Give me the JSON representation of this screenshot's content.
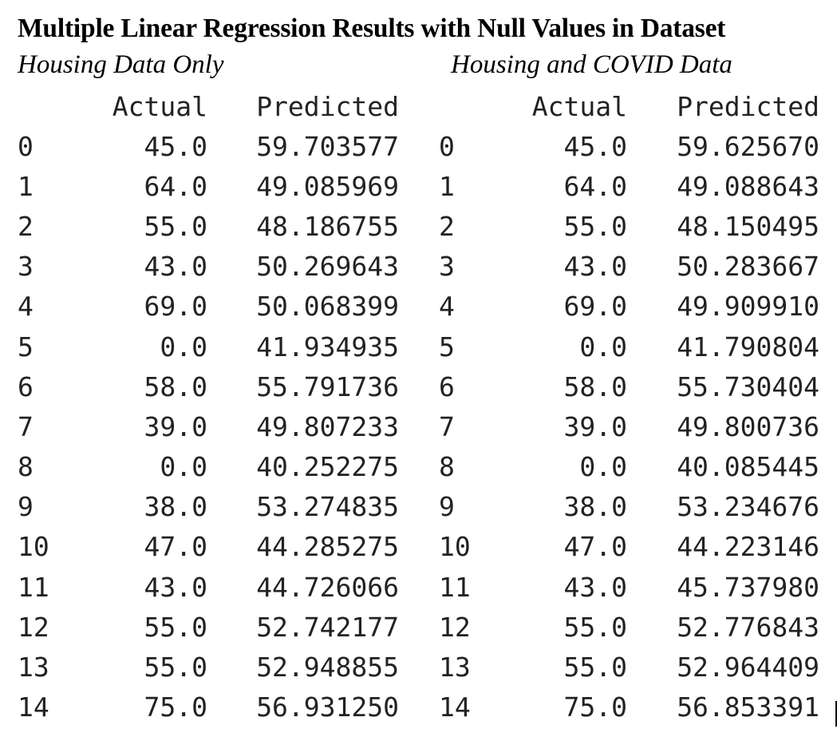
{
  "title": "Multiple Linear Regression Results with Null Values in Dataset",
  "left_table": {
    "subtitle": "Housing Data Only",
    "columns": [
      "",
      "Actual",
      "Predicted"
    ],
    "rows": [
      [
        "0",
        "45.0",
        "59.703577"
      ],
      [
        "1",
        "64.0",
        "49.085969"
      ],
      [
        "2",
        "55.0",
        "48.186755"
      ],
      [
        "3",
        "43.0",
        "50.269643"
      ],
      [
        "4",
        "69.0",
        "50.068399"
      ],
      [
        "5",
        "0.0",
        "41.934935"
      ],
      [
        "6",
        "58.0",
        "55.791736"
      ],
      [
        "7",
        "39.0",
        "49.807233"
      ],
      [
        "8",
        "0.0",
        "40.252275"
      ],
      [
        "9",
        "38.0",
        "53.274835"
      ],
      [
        "10",
        "47.0",
        "44.285275"
      ],
      [
        "11",
        "43.0",
        "44.726066"
      ],
      [
        "12",
        "55.0",
        "52.742177"
      ],
      [
        "13",
        "55.0",
        "52.948855"
      ],
      [
        "14",
        "75.0",
        "56.931250"
      ]
    ]
  },
  "right_table": {
    "subtitle": "Housing and COVID Data",
    "columns": [
      "",
      "Actual",
      "Predicted"
    ],
    "rows": [
      [
        "0",
        "45.0",
        "59.625670"
      ],
      [
        "1",
        "64.0",
        "49.088643"
      ],
      [
        "2",
        "55.0",
        "48.150495"
      ],
      [
        "3",
        "43.0",
        "50.283667"
      ],
      [
        "4",
        "69.0",
        "49.909910"
      ],
      [
        "5",
        "0.0",
        "41.790804"
      ],
      [
        "6",
        "58.0",
        "55.730404"
      ],
      [
        "7",
        "39.0",
        "49.800736"
      ],
      [
        "8",
        "0.0",
        "40.085445"
      ],
      [
        "9",
        "38.0",
        "53.234676"
      ],
      [
        "10",
        "47.0",
        "44.223146"
      ],
      [
        "11",
        "43.0",
        "45.737980"
      ],
      [
        "12",
        "55.0",
        "52.776843"
      ],
      [
        "13",
        "55.0",
        "52.964409"
      ],
      [
        "14",
        "75.0",
        "56.853391"
      ]
    ]
  }
}
